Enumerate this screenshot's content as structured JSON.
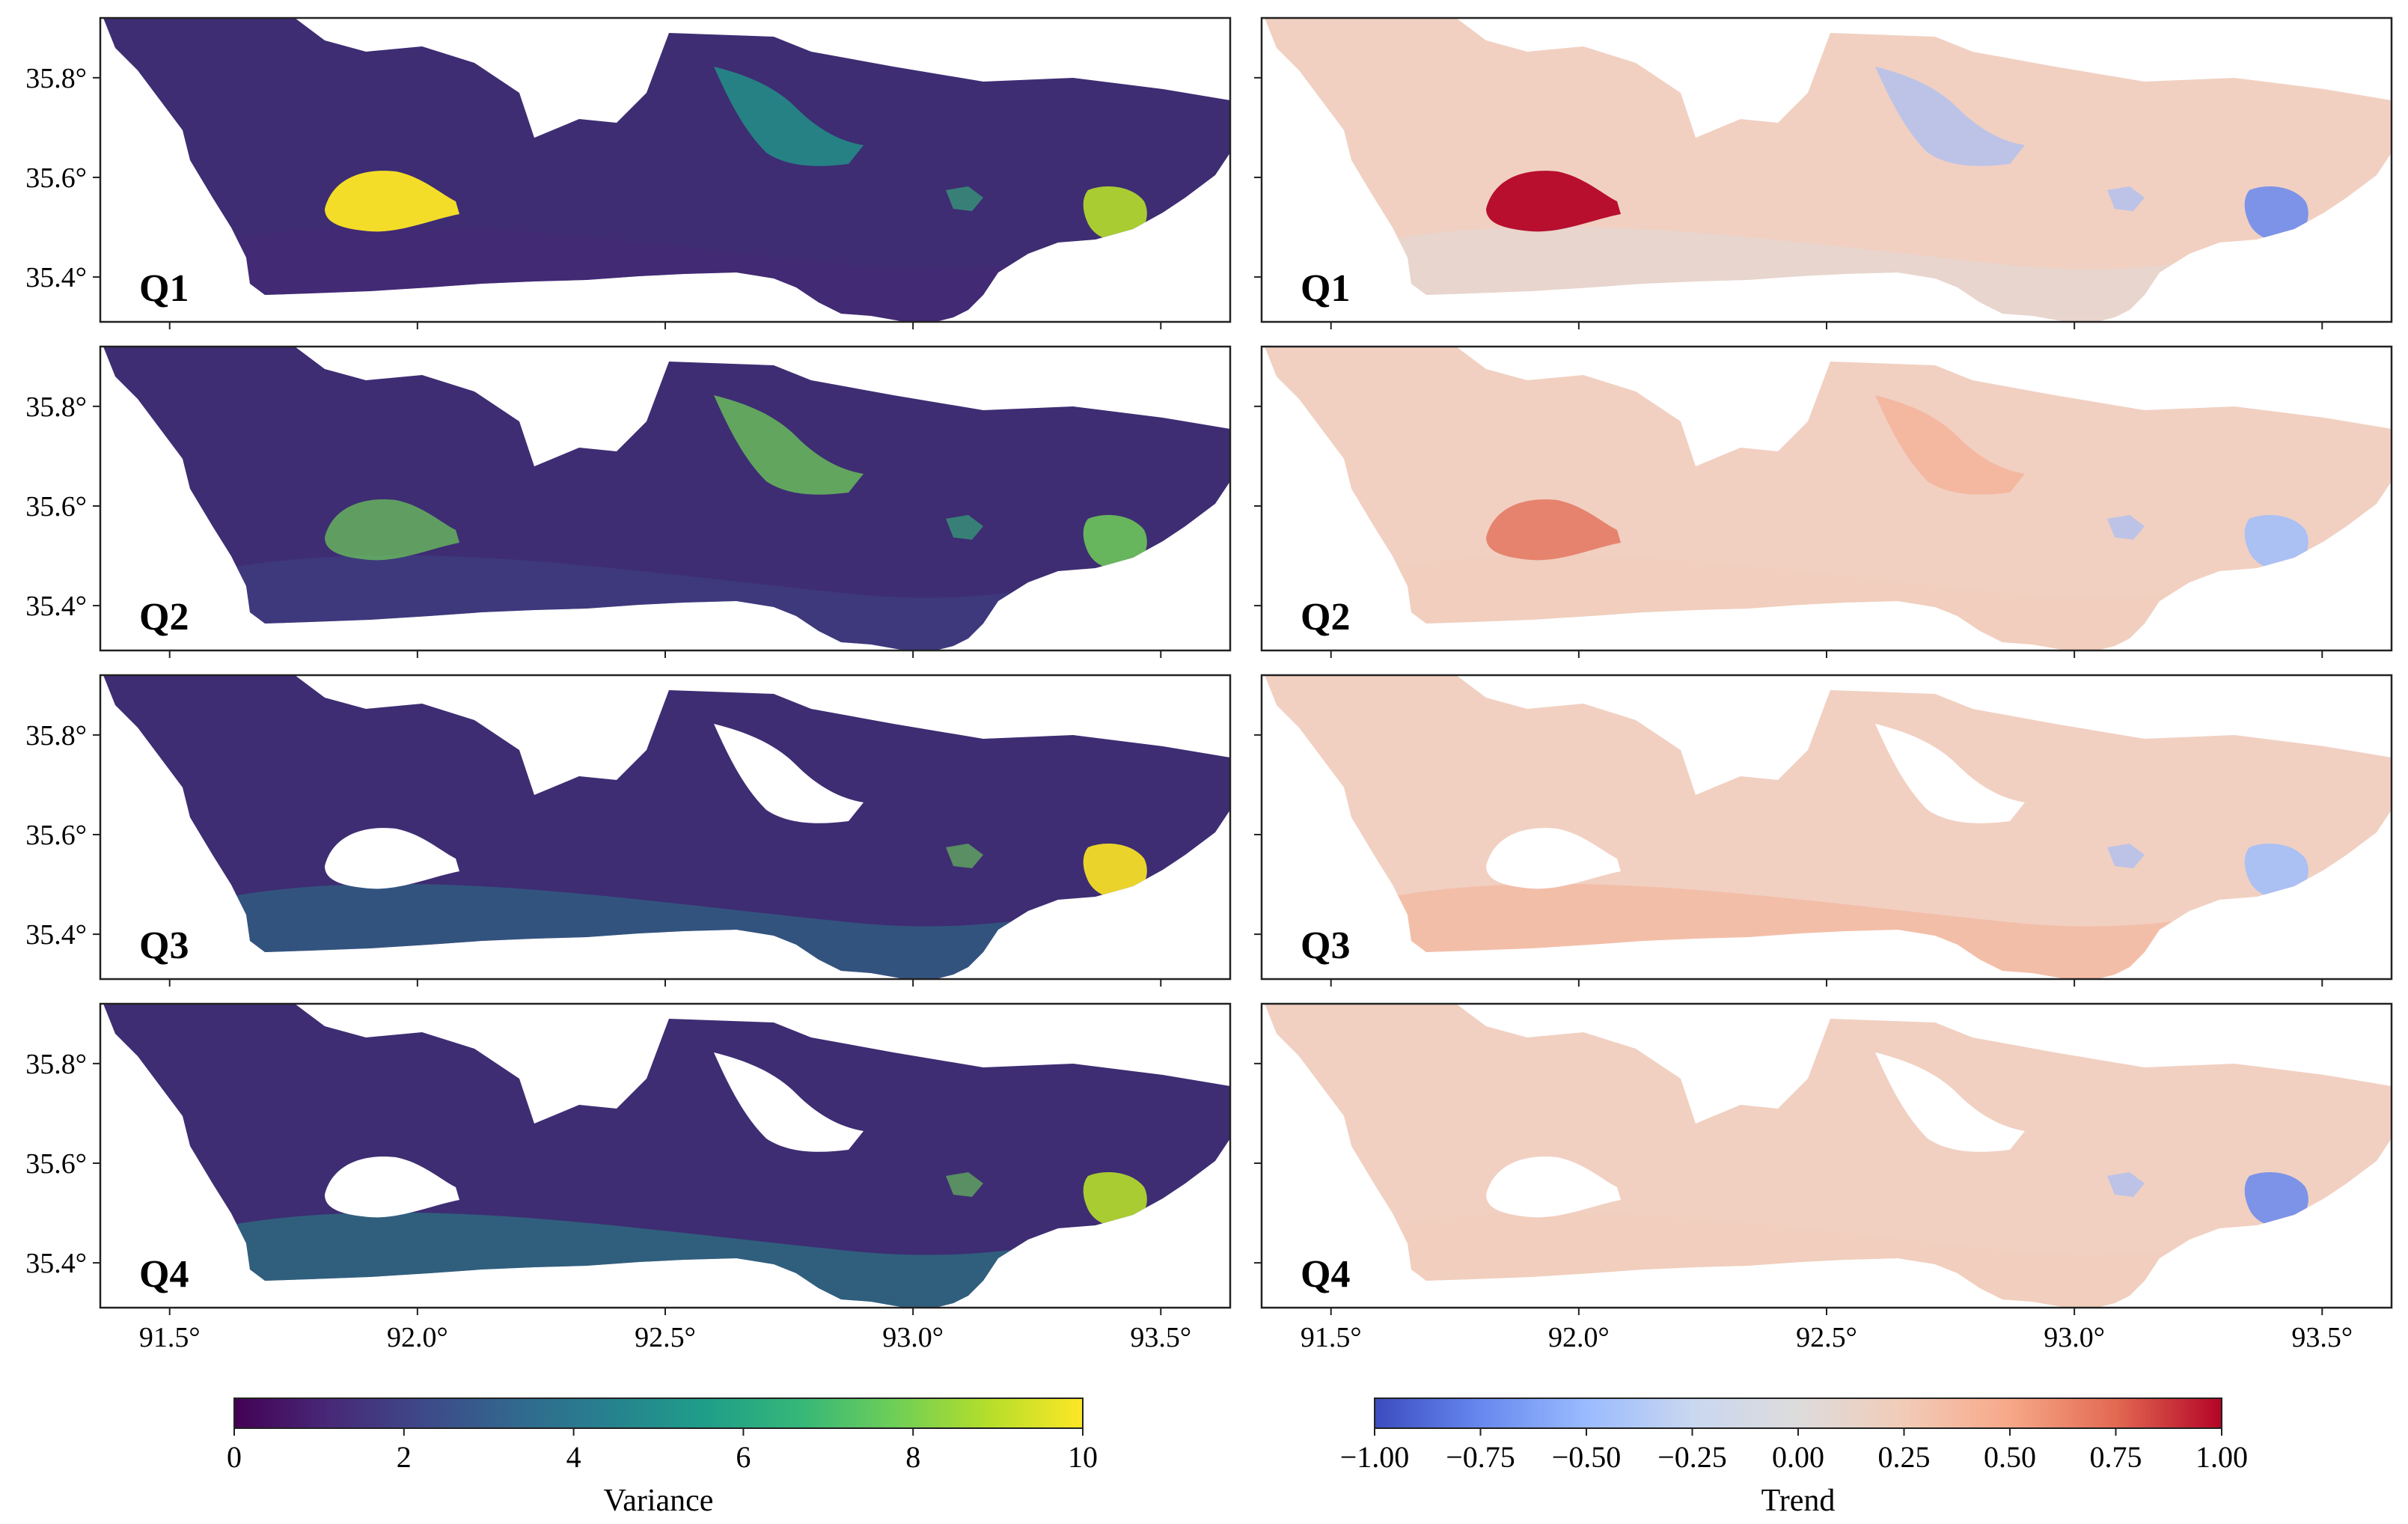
{
  "chart_data": [
    {
      "type": "heatmap",
      "column": "left",
      "colormap": "viridis",
      "panels": [
        "Q1",
        "Q2",
        "Q3",
        "Q4"
      ],
      "x_ticks": [
        91.5,
        92.0,
        92.5,
        93.0,
        93.5
      ],
      "x_tick_labels": [
        "91.5°",
        "92.0°",
        "92.5°",
        "93.0°",
        "93.5°"
      ],
      "y_ticks": [
        35.8,
        35.6,
        35.4
      ],
      "y_tick_labels": [
        "35.8°",
        "35.6°",
        "35.4°"
      ],
      "xlim": [
        91.36,
        93.64
      ],
      "ylim": [
        35.31,
        35.92
      ],
      "colorbar": {
        "label": "Variance",
        "range": [
          0,
          10
        ],
        "ticks": [
          0,
          2,
          4,
          6,
          8,
          10
        ],
        "tick_labels": [
          "0",
          "2",
          "4",
          "6",
          "8",
          "10"
        ]
      }
    },
    {
      "type": "heatmap",
      "column": "right",
      "colormap": "coolwarm",
      "panels": [
        "Q1",
        "Q2",
        "Q3",
        "Q4"
      ],
      "x_ticks": [
        91.5,
        92.0,
        92.5,
        93.0,
        93.5
      ],
      "x_tick_labels": [
        "91.5°",
        "92.0°",
        "92.5°",
        "93.0°",
        "93.5°"
      ],
      "y_ticks": [
        35.8,
        35.6,
        35.4
      ],
      "y_tick_labels": [
        "35.8°",
        "35.6°",
        "35.4°"
      ],
      "xlim": [
        91.36,
        93.64
      ],
      "ylim": [
        35.31,
        35.92
      ],
      "colorbar": {
        "label": "Trend",
        "range": [
          -1.0,
          1.0
        ],
        "ticks": [
          -1.0,
          -0.75,
          -0.5,
          -0.25,
          0.0,
          0.25,
          0.5,
          0.75,
          1.0
        ],
        "tick_labels": [
          "−1.00",
          "−0.75",
          "−0.50",
          "−0.25",
          "0.00",
          "0.25",
          "0.50",
          "0.75",
          "1.00"
        ]
      }
    }
  ],
  "colors": {
    "viridis": [
      "#440154",
      "#482878",
      "#3e4989",
      "#31688e",
      "#26828e",
      "#1f9e89",
      "#35b779",
      "#6ece58",
      "#b5de2b",
      "#fde725"
    ],
    "coolwarm": [
      "#3b4cc0",
      "#6788ee",
      "#9abbff",
      "#c9d7f0",
      "#dddcdc",
      "#f2cbb7",
      "#f7a889",
      "#e26952",
      "#b40426"
    ],
    "background_left": "#3e2d73",
    "background_right": "#f1d0c2",
    "white": "#ffffff"
  }
}
